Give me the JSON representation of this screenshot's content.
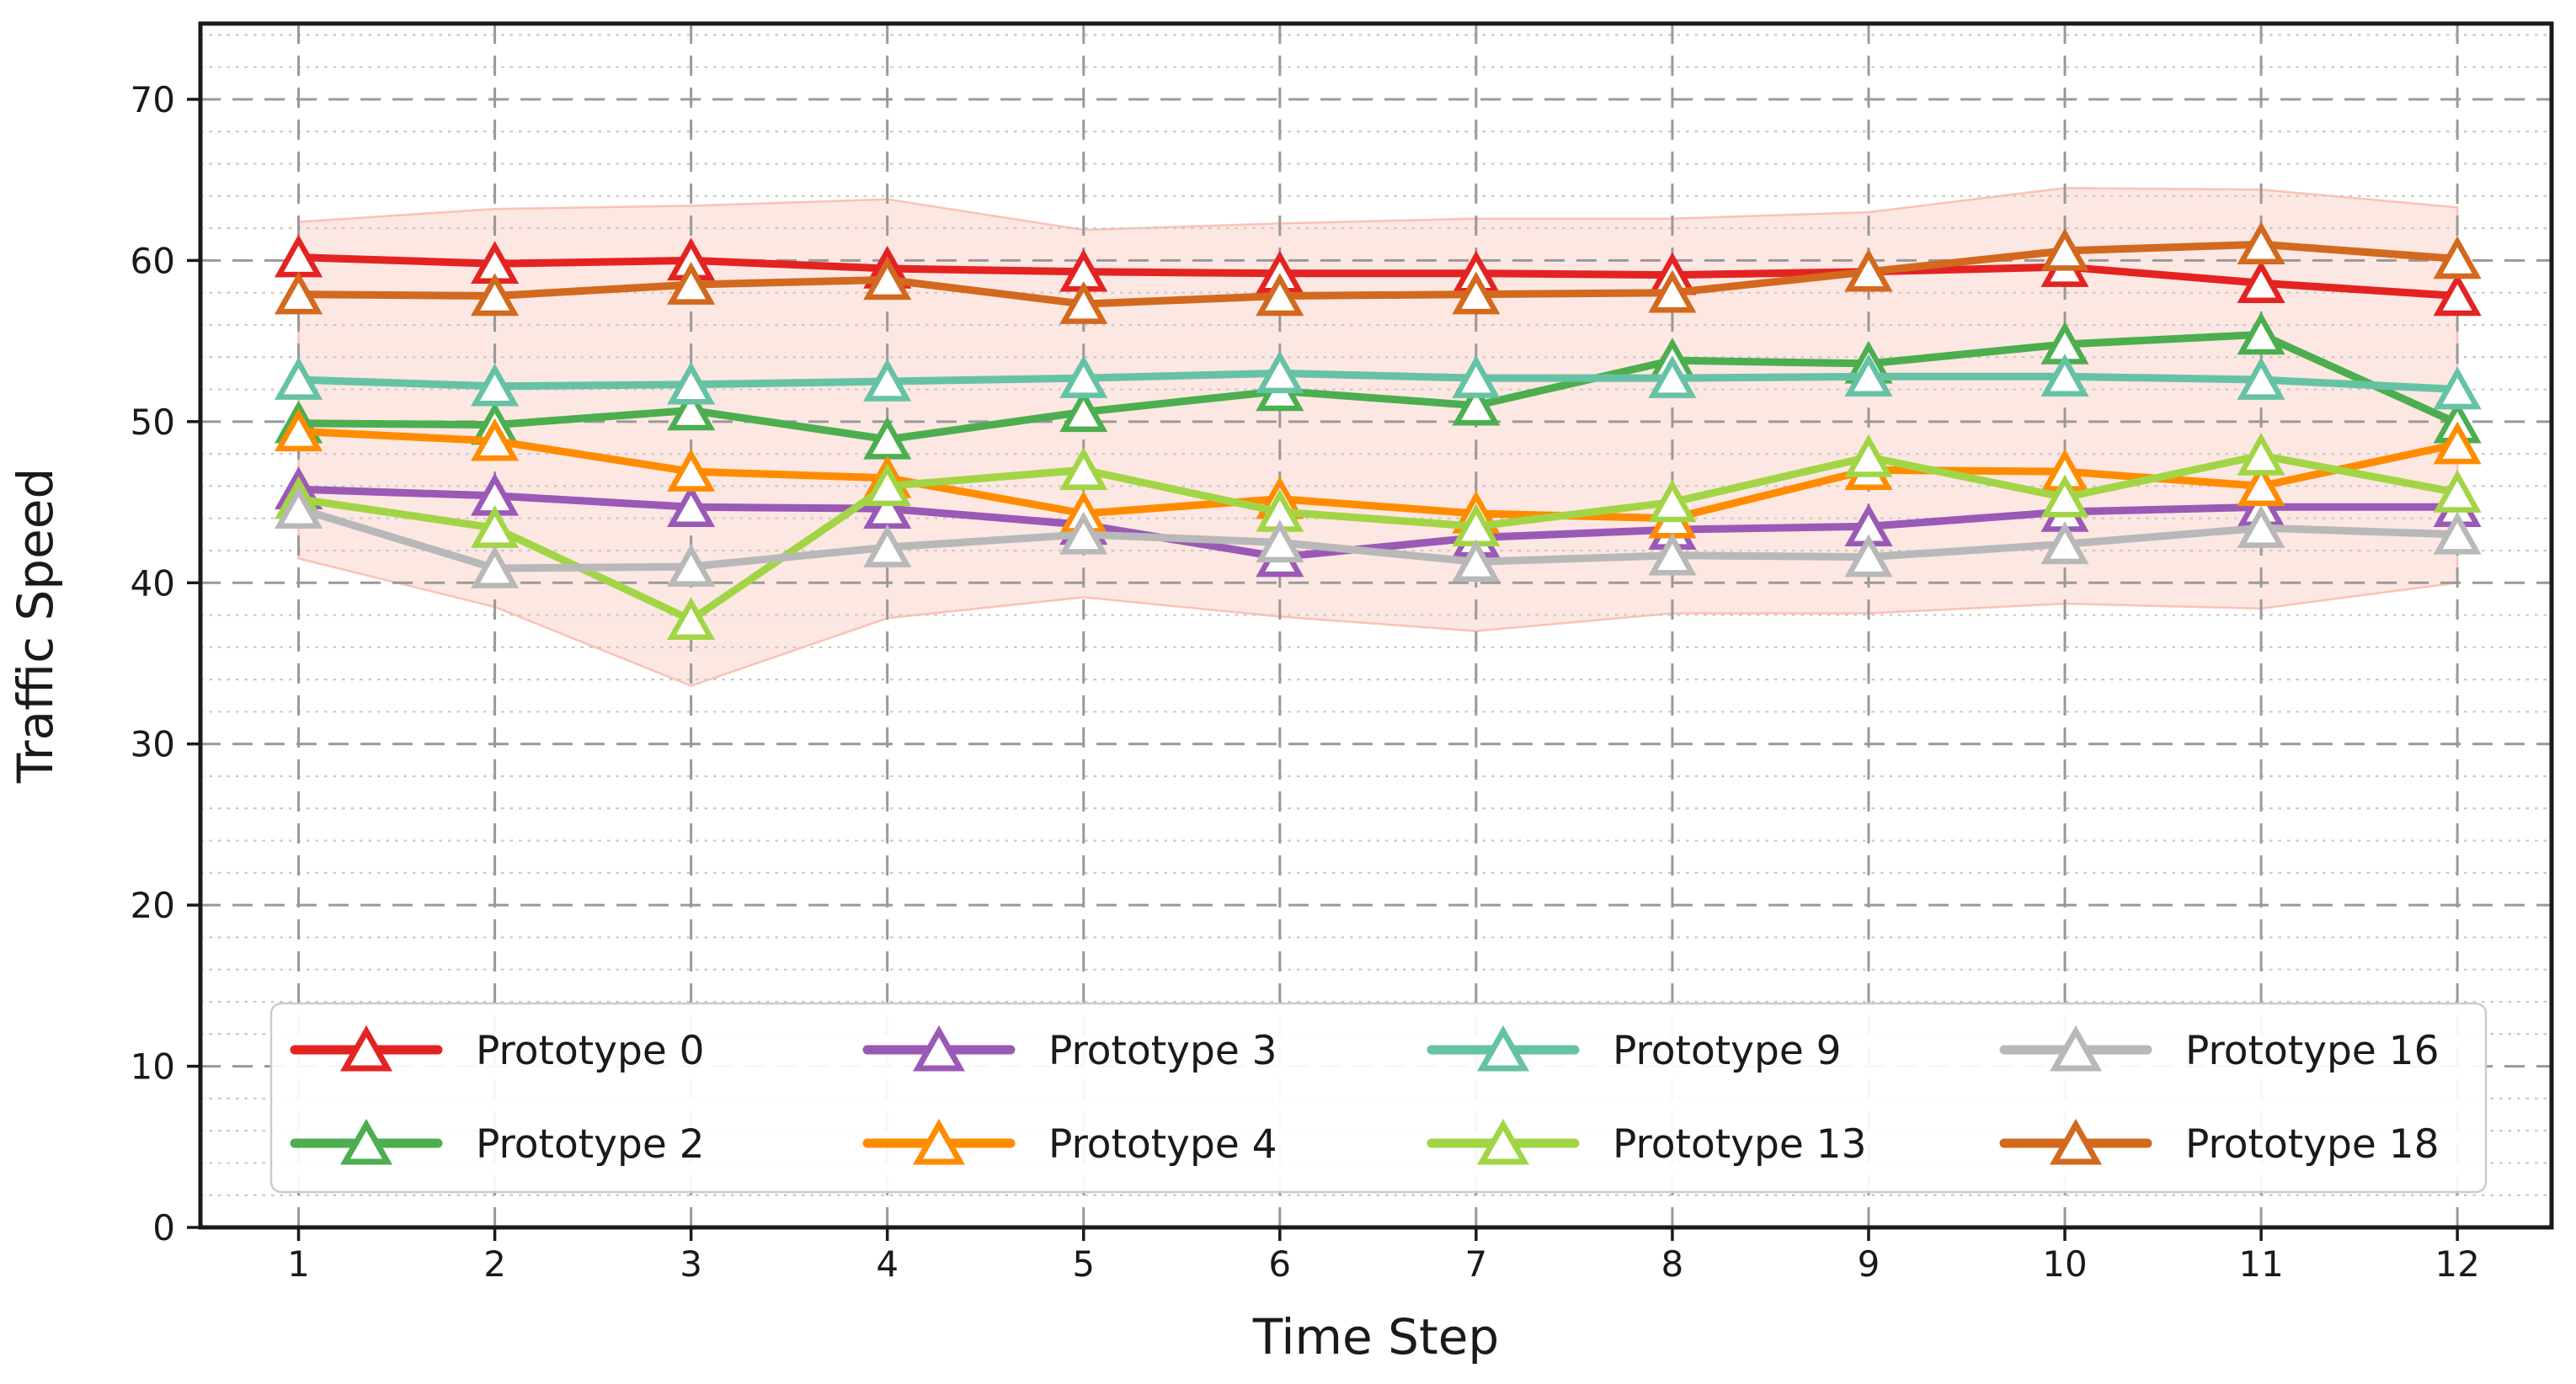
{
  "figure": {
    "background": "#ffffff",
    "xlabel": "Time Step",
    "ylabel": "Traffic Speed"
  },
  "chart_data": {
    "type": "line",
    "title": "",
    "xlabel": "Time Step",
    "ylabel": "Traffic Speed",
    "x": [
      1,
      2,
      3,
      4,
      5,
      6,
      7,
      8,
      9,
      10,
      11,
      12
    ],
    "xticks": [
      1,
      2,
      3,
      4,
      5,
      6,
      7,
      8,
      9,
      10,
      11,
      12
    ],
    "yticks": [
      0,
      10,
      20,
      30,
      40,
      50,
      60,
      70
    ],
    "xlim": [
      0.5,
      12.48
    ],
    "ylim": [
      0,
      74.7
    ],
    "grid": "horizontal major dashed, minor dotted every 2; vertical dashed at each time step",
    "legend_position": "lower center inside, 4 columns x 2 rows",
    "marker": "triangle-up, white filled",
    "series": [
      {
        "name": "Prototype 0",
        "color": "#e32322",
        "values": [
          60.2,
          59.8,
          60.0,
          59.5,
          59.3,
          59.2,
          59.2,
          59.1,
          59.3,
          59.6,
          58.6,
          57.8
        ]
      },
      {
        "name": "Prototype 2",
        "color": "#4cae4f",
        "values": [
          49.9,
          49.8,
          50.7,
          48.9,
          50.6,
          51.9,
          51.0,
          53.8,
          53.6,
          54.8,
          55.4,
          49.9
        ]
      },
      {
        "name": "Prototype 3",
        "color": "#9b59b6",
        "values": [
          45.8,
          45.4,
          44.7,
          44.6,
          43.6,
          41.6,
          42.8,
          43.3,
          43.5,
          44.4,
          44.7,
          44.7
        ]
      },
      {
        "name": "Prototype 4",
        "color": "#ff8c00",
        "values": [
          49.4,
          48.8,
          46.9,
          46.5,
          44.3,
          45.2,
          44.3,
          44.0,
          47.0,
          46.9,
          46.0,
          48.6
        ]
      },
      {
        "name": "Prototype 9",
        "color": "#66c2a5",
        "values": [
          52.6,
          52.2,
          52.3,
          52.5,
          52.7,
          53.0,
          52.7,
          52.7,
          52.8,
          52.8,
          52.6,
          52.0
        ]
      },
      {
        "name": "Prototype 13",
        "color": "#a2d546",
        "values": [
          45.2,
          43.4,
          37.7,
          46.0,
          47.0,
          44.4,
          43.5,
          45.0,
          47.8,
          45.3,
          47.9,
          45.6
        ]
      },
      {
        "name": "Prototype 16",
        "color": "#b8b8b8",
        "values": [
          44.6,
          40.9,
          41.0,
          42.2,
          43.0,
          42.5,
          41.3,
          41.7,
          41.6,
          42.4,
          43.4,
          43.0
        ]
      },
      {
        "name": "Prototype 18",
        "color": "#d2691e",
        "values": [
          57.9,
          57.8,
          58.5,
          58.8,
          57.3,
          57.8,
          57.9,
          58.0,
          59.3,
          60.6,
          61.0,
          60.1
        ]
      }
    ],
    "band": {
      "around_series": "Prototype 0",
      "color": "#f5937a",
      "opacity": 0.22,
      "upper": [
        62.4,
        63.2,
        63.4,
        63.8,
        61.9,
        62.3,
        62.6,
        62.6,
        63.0,
        64.5,
        64.4,
        63.3
      ],
      "lower": [
        41.5,
        38.5,
        33.6,
        37.8,
        39.1,
        37.9,
        37.0,
        38.1,
        38.1,
        38.7,
        38.4,
        40.0
      ]
    },
    "legend_entries": [
      "Prototype 0",
      "Prototype 2",
      "Prototype 3",
      "Prototype 4",
      "Prototype 9",
      "Prototype 13",
      "Prototype 16",
      "Prototype 18"
    ]
  },
  "style_colors": {
    "major_grid": "#999999",
    "minor_grid": "#c8c8c8",
    "spine": "#1a1a1a",
    "legend_border": "#cccccc"
  }
}
